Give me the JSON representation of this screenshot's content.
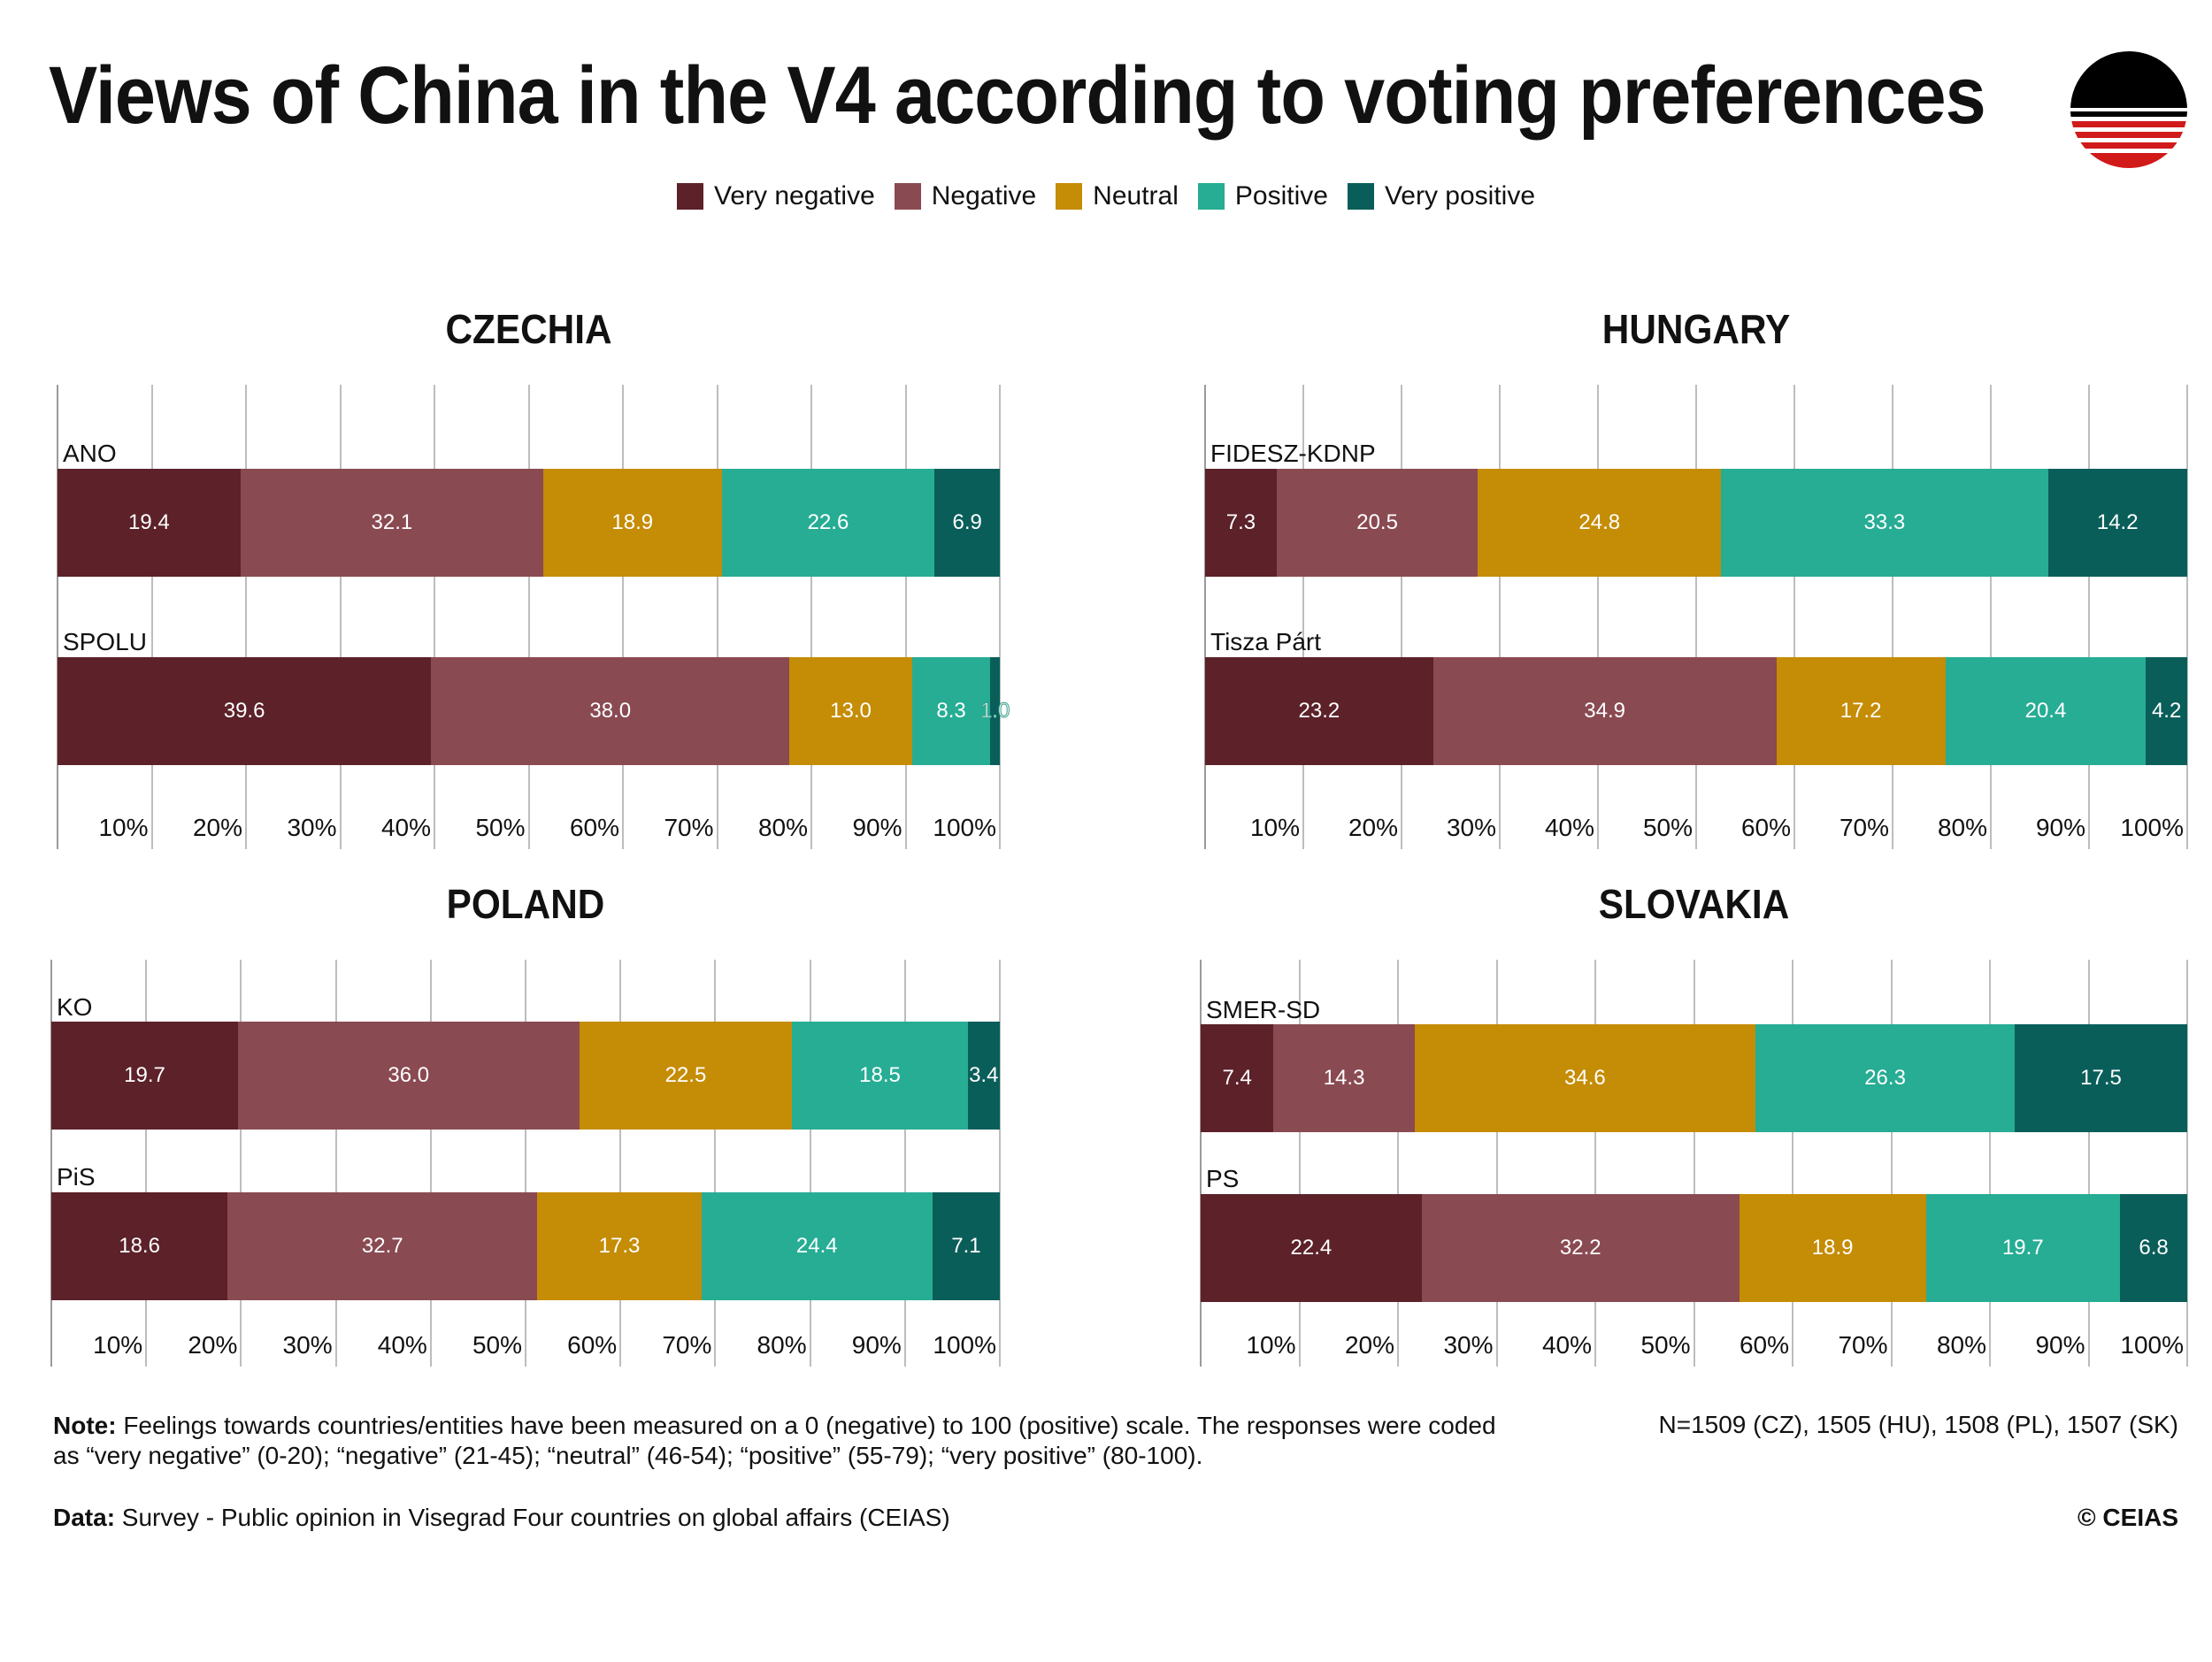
{
  "title": "Views of China in the V4 according to voting preferences",
  "legend": [
    {
      "label": "Very negative",
      "color": "#5c2129"
    },
    {
      "label": "Negative",
      "color": "#8a4a52"
    },
    {
      "label": "Neutral",
      "color": "#c58c05"
    },
    {
      "label": "Positive",
      "color": "#26ad94"
    },
    {
      "label": "Very positive",
      "color": "#0a5e5a"
    }
  ],
  "chart_data": [
    {
      "type": "bar",
      "stacked": true,
      "orientation": "horizontal",
      "title": "CZECHIA",
      "categories": [
        "ANO",
        "SPOLU"
      ],
      "series": [
        {
          "name": "Very negative",
          "values": [
            19.4,
            39.6
          ]
        },
        {
          "name": "Negative",
          "values": [
            32.1,
            38.0
          ]
        },
        {
          "name": "Neutral",
          "values": [
            18.9,
            13.0
          ]
        },
        {
          "name": "Positive",
          "values": [
            22.6,
            8.3
          ]
        },
        {
          "name": "Very positive",
          "values": [
            6.9,
            1.0
          ]
        }
      ],
      "x_ticks": [
        "10%",
        "20%",
        "30%",
        "40%",
        "50%",
        "60%",
        "70%",
        "80%",
        "90%",
        "100%"
      ],
      "xlim": [
        0,
        100
      ]
    },
    {
      "type": "bar",
      "stacked": true,
      "orientation": "horizontal",
      "title": "HUNGARY",
      "categories": [
        "FIDESZ-KDNP",
        "Tisza Párt"
      ],
      "series": [
        {
          "name": "Very negative",
          "values": [
            7.3,
            23.2
          ]
        },
        {
          "name": "Negative",
          "values": [
            20.5,
            34.9
          ]
        },
        {
          "name": "Neutral",
          "values": [
            24.8,
            17.2
          ]
        },
        {
          "name": "Positive",
          "values": [
            33.3,
            20.4
          ]
        },
        {
          "name": "Very positive",
          "values": [
            14.2,
            4.2
          ]
        }
      ],
      "x_ticks": [
        "10%",
        "20%",
        "30%",
        "40%",
        "50%",
        "60%",
        "70%",
        "80%",
        "90%",
        "100%"
      ],
      "xlim": [
        0,
        100
      ]
    },
    {
      "type": "bar",
      "stacked": true,
      "orientation": "horizontal",
      "title": "POLAND",
      "categories": [
        "KO",
        "PiS"
      ],
      "series": [
        {
          "name": "Very negative",
          "values": [
            19.7,
            18.6
          ]
        },
        {
          "name": "Negative",
          "values": [
            36.0,
            32.7
          ]
        },
        {
          "name": "Neutral",
          "values": [
            22.5,
            17.3
          ]
        },
        {
          "name": "Positive",
          "values": [
            18.5,
            24.4
          ]
        },
        {
          "name": "Very positive",
          "values": [
            3.4,
            7.1
          ]
        }
      ],
      "x_ticks": [
        "10%",
        "20%",
        "30%",
        "40%",
        "50%",
        "60%",
        "70%",
        "80%",
        "90%",
        "100%"
      ],
      "xlim": [
        0,
        100
      ]
    },
    {
      "type": "bar",
      "stacked": true,
      "orientation": "horizontal",
      "title": "SLOVAKIA",
      "categories": [
        "SMER-SD",
        "PS"
      ],
      "series": [
        {
          "name": "Very negative",
          "values": [
            7.4,
            22.4
          ]
        },
        {
          "name": "Negative",
          "values": [
            14.3,
            32.2
          ]
        },
        {
          "name": "Neutral",
          "values": [
            34.6,
            18.9
          ]
        },
        {
          "name": "Positive",
          "values": [
            26.3,
            19.7
          ]
        },
        {
          "name": "Very positive",
          "values": [
            17.5,
            6.8
          ]
        }
      ],
      "x_ticks": [
        "10%",
        "20%",
        "30%",
        "40%",
        "50%",
        "60%",
        "70%",
        "80%",
        "90%",
        "100%"
      ],
      "xlim": [
        0,
        100
      ]
    }
  ],
  "note_label": "Note:",
  "note_text": " Feelings towards countries/entities have been measured on a 0 (negative) to 100 (positive) scale. The responses were coded as “very negative” (0-20); “negative” (21-45); “neutral” (46-54); “positive” (55-79); “very positive” (80-100).",
  "sample_sizes": "N=1509 (CZ), 1505 (HU), 1508 (PL), 1507 (SK)",
  "data_label": "Data:",
  "data_text": " Survey - Public opinion in Visegrad Four countries on global affairs (CEIAS)",
  "copyright": "© CEIAS"
}
